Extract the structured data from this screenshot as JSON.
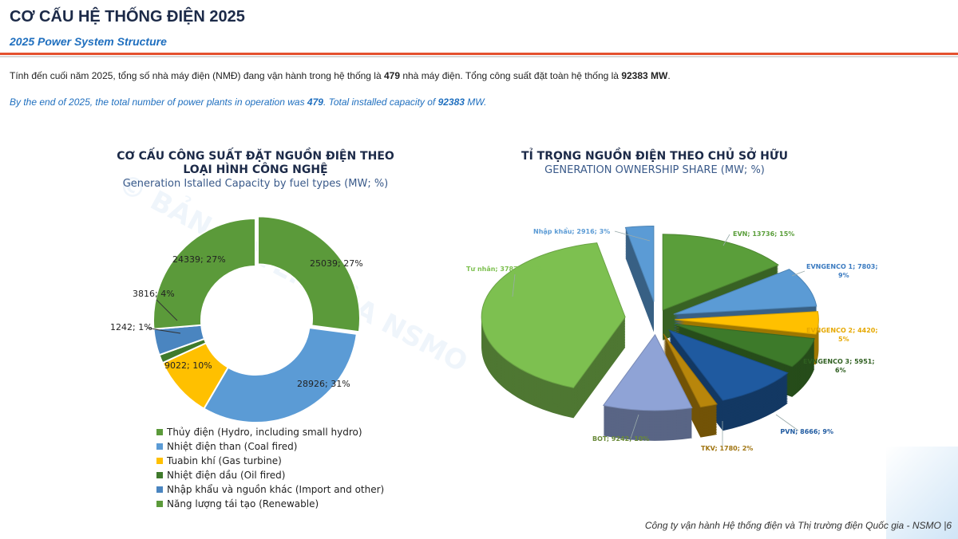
{
  "header": {
    "title": "CƠ CẤU HỆ THỐNG ĐIỆN 2025",
    "subtitle": "2025 Power System Structure"
  },
  "intro": {
    "vi_prefix": "Tính đến cuối năm 2025, tổng số nhà máy điện (NMĐ) đang vận hành trong hệ thống là ",
    "vi_plants": "479",
    "vi_mid": " nhà máy điện. Tổng công suất đặt toàn hệ thống là ",
    "vi_capacity": "92383 MW",
    "vi_end": ".",
    "en_prefix": "By the end of 2025, the total number of power plants in operation was ",
    "en_plants": "479",
    "en_mid": ". Total installed capacity of ",
    "en_capacity": "92383",
    "en_end": " MW."
  },
  "watermark": "© BẢN QUYỀN CỦA NSMO",
  "footer": "Công ty vận hành Hệ thống điện và Thị trường điện Quốc gia - NSMO |6",
  "chart_data": [
    {
      "type": "pie",
      "variant": "donut",
      "title": "CƠ CẤU CÔNG SUẤT ĐẶT NGUỒN ĐIỆN THEO LOẠI HÌNH CÔNG NGHỆ",
      "title_line1": "CƠ CẤU CÔNG SUẤT ĐẶT NGUỒN ĐIỆN THEO",
      "title_line2": "LOẠI HÌNH CÔNG NGHỆ",
      "subtitle": "Generation Istalled Capacity by fuel types (MW; %)",
      "legend_position": "bottom",
      "categories": [
        "Thủy điện (Hydro, including small hydro)",
        "Nhiệt điện than (Coal fired)",
        "Tuabin khí (Gas turbine)",
        "Nhiệt điện dầu (Oil fired)",
        "Nhập khẩu và nguồn khác (Import and other)",
        "Năng lượng tái tạo (Renewable)"
      ],
      "values": [
        25039,
        28926,
        9022,
        1242,
        3816,
        24339
      ],
      "percents": [
        27,
        31,
        10,
        1,
        4,
        27
      ],
      "labels": [
        "25039; 27%",
        "28926; 31%",
        "9022; 10%",
        "1242; 1%",
        "3816; 4%",
        "24339; 27%"
      ],
      "colors": [
        "#5b9a3a",
        "#5b9bd5",
        "#ffc000",
        "#3f7a2c",
        "#4a85c0",
        "#5b9a3a"
      ]
    },
    {
      "type": "pie",
      "variant": "3d-exploded",
      "title": "TỈ TRỌNG NGUỒN ĐIỆN THEO CHỦ SỞ HỮU",
      "subtitle": "GENERATION OWNERSHIP SHARE (MW; %)",
      "categories": [
        "EVN",
        "EVNGENCO 1",
        "EVNGENCO 2",
        "EVNGENCO 3",
        "PVN",
        "TKV",
        "BOT",
        "Tư nhân",
        "Nhập khẩu"
      ],
      "values": [
        13736,
        7803,
        4420,
        5951,
        8666,
        1780,
        9242,
        37870,
        2916
      ],
      "percents": [
        15,
        9,
        5,
        6,
        9,
        2,
        10,
        41,
        3
      ],
      "labels": [
        "EVN; 13736; 15%",
        "EVNGENCO 1; 7803; 9%",
        "EVNGENCO 2; 4420; 5%",
        "EVNGENCO 3; 5951; 6%",
        "PVN; 8666; 9%",
        "TKV; 1780; 2%",
        "BOT; 9242; 10%",
        "Tư nhân; 37870; 41%",
        "Nhập khẩu; 2916; 3%"
      ],
      "label_lines": [
        [
          "EVN; 13736; 15%"
        ],
        [
          "EVNGENCO 1; 7803;",
          "9%"
        ],
        [
          "EVNGENCO 2; 4420;",
          "5%"
        ],
        [
          "EVNGENCO 3; 5951;",
          "6%"
        ],
        [
          "PVN; 8666; 9%"
        ],
        [
          "TKV; 1780; 2%"
        ],
        [
          "BOT; 9242; 10%"
        ],
        [
          "Tư nhân; 37870; 41%"
        ],
        [
          "Nhập khẩu; 2916; 3%"
        ]
      ],
      "colors": [
        "#5a9e3a",
        "#5b9bd5",
        "#ffc000",
        "#3d7a2a",
        "#1f5aa0",
        "#b8860b",
        "#8fa3d6",
        "#7dc050",
        "#5b9bd5"
      ],
      "label_colors": [
        "#5a9e3a",
        "#3a7ac0",
        "#e6a800",
        "#2f5f20",
        "#1f5aa0",
        "#a07410",
        "#6a8a3a",
        "#7dc050",
        "#5b9bd5"
      ]
    }
  ]
}
